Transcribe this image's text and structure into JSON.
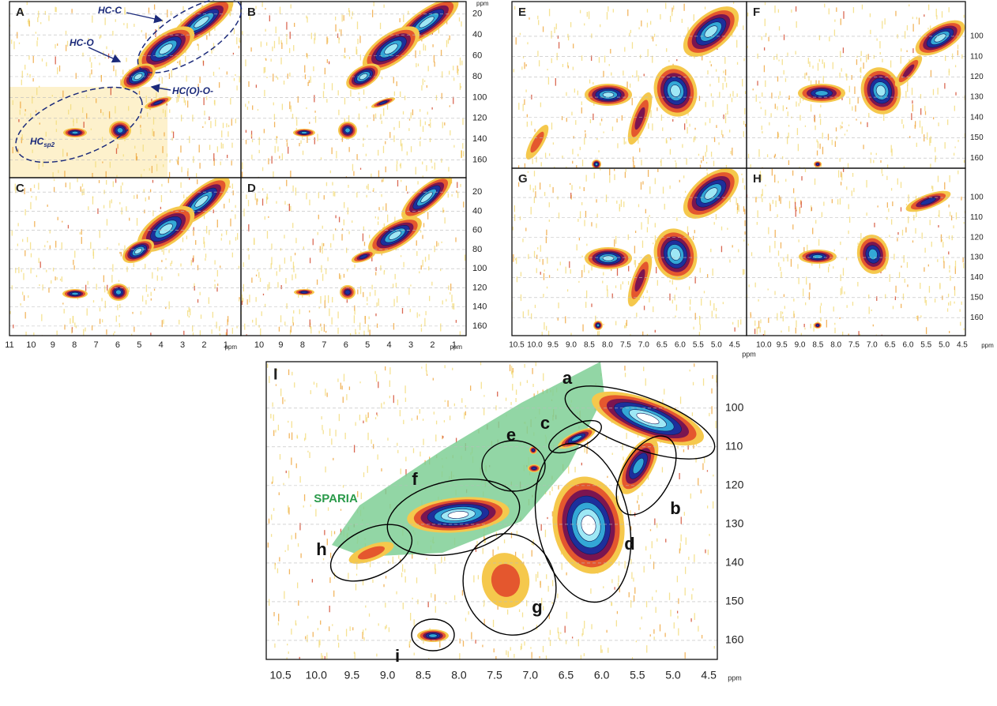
{
  "figure_left": {
    "panels": [
      {
        "label": "A",
        "annotations": [
          {
            "text": "HC-C"
          },
          {
            "text": "HC-O"
          },
          {
            "text": "HC(O)-O-"
          },
          {
            "text": "HC",
            "subscript": "sp2"
          }
        ]
      },
      {
        "label": "B"
      },
      {
        "label": "C"
      },
      {
        "label": "D"
      }
    ],
    "yticks": [
      20,
      40,
      60,
      80,
      100,
      120,
      140,
      160
    ],
    "ylim_top": [
      8,
      177
    ],
    "ylim_bottom": [
      5,
      170
    ],
    "xticks_left": [
      11,
      10,
      9,
      8,
      7,
      6,
      5,
      4,
      3,
      2,
      1
    ],
    "xlim_left": [
      11,
      0.3
    ],
    "xticks_right": [
      10,
      9,
      8,
      7,
      6,
      5,
      4,
      3,
      2,
      1
    ],
    "xlim_right": [
      10.84,
      0.45
    ],
    "unit": "ppm"
  },
  "figure_right": {
    "panels": [
      {
        "label": "E"
      },
      {
        "label": "F"
      },
      {
        "label": "G"
      },
      {
        "label": "H"
      }
    ],
    "yticks": [
      100,
      110,
      120,
      130,
      140,
      150,
      160
    ],
    "ylim_top": [
      82.9,
      165
    ],
    "ylim_bottom": [
      85.4,
      169
    ],
    "xticks_left": [
      10.5,
      {
        "value": 10,
        "label": "10.0"
      },
      9.5,
      {
        "value": 9,
        "label": "9.0"
      },
      8.5,
      {
        "value": 8,
        "label": "8.0"
      },
      7.5,
      {
        "value": 7,
        "label": "7.0"
      },
      6.5,
      {
        "value": 6,
        "label": "6.0"
      },
      5.5,
      {
        "value": 5,
        "label": "5.0"
      },
      4.5
    ],
    "xlim_left": [
      10.63,
      4.17
    ],
    "xticks_right": [
      {
        "value": 10,
        "label": "10.0"
      },
      9.5,
      {
        "value": 9,
        "label": "9.0"
      },
      8.5,
      {
        "value": 8,
        "label": "8.0"
      },
      7.5,
      {
        "value": 7,
        "label": "7.0"
      },
      6.5,
      {
        "value": 6,
        "label": "6.0"
      },
      5.5,
      {
        "value": 5,
        "label": "5.0"
      },
      4.5
    ],
    "xlim_right": [
      10.48,
      4.41
    ],
    "unit": "ppm"
  },
  "figure_main": {
    "label": "I",
    "overlay_label": "SPARIA",
    "regions": [
      {
        "label": "a"
      },
      {
        "label": "b"
      },
      {
        "label": "c"
      },
      {
        "label": "d"
      },
      {
        "label": "e"
      },
      {
        "label": "f"
      },
      {
        "label": "g"
      },
      {
        "label": "h"
      },
      {
        "label": "i"
      }
    ],
    "yticks": [
      100,
      110,
      120,
      130,
      140,
      150,
      160
    ],
    "ylim": [
      88,
      164.9
    ],
    "xticks": [
      10.5,
      {
        "value": 10,
        "label": "10.0"
      },
      9.5,
      {
        "value": 9,
        "label": "9.0"
      },
      8.5,
      {
        "value": 8,
        "label": "8.0"
      },
      7.5,
      {
        "value": 7,
        "label": "7.0"
      },
      6.5,
      {
        "value": 6,
        "label": "6.0"
      },
      5.5,
      {
        "value": 5,
        "label": "5.0"
      },
      4.5
    ],
    "xlim": [
      10.7,
      4.38
    ],
    "unit": "ppm"
  }
}
